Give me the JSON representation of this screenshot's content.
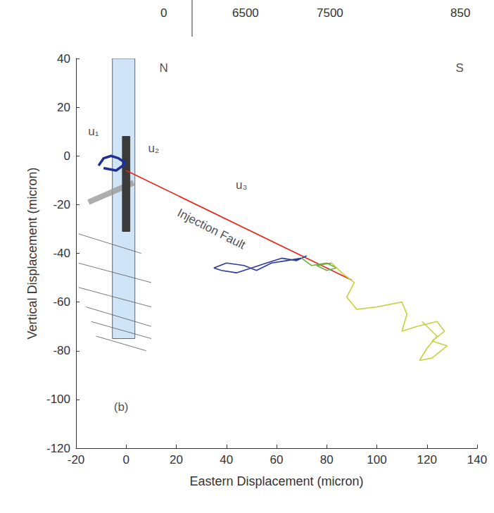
{
  "chart_data": {
    "type": "line",
    "x_label": "Eastern Displacement (micron)",
    "y_label": "Vertical Displacement (micron)",
    "xlim": [
      -20,
      140
    ],
    "ylim": [
      -120,
      40
    ],
    "xticks": [
      -20,
      0,
      20,
      40,
      60,
      80,
      100,
      120,
      140
    ],
    "yticks": [
      -120,
      -100,
      -80,
      -60,
      -40,
      -20,
      0,
      20,
      40
    ],
    "grid": false,
    "tick_labels": true,
    "series": [
      {
        "color": "#1f2f9a",
        "values": [
          [
            -11,
            -4
          ],
          [
            -9,
            -1
          ],
          [
            -6,
            0
          ],
          [
            -3,
            -1
          ],
          [
            0,
            -3
          ],
          [
            -4,
            -6
          ],
          [
            -9,
            -5
          ]
        ]
      },
      {
        "color": "#e8251b",
        "values": [
          [
            0,
            -6
          ],
          [
            90,
            -51
          ]
        ]
      },
      {
        "color": "#2c3a9e",
        "values": [
          [
            72,
            -41
          ],
          [
            68,
            -43
          ],
          [
            62,
            -42
          ],
          [
            56,
            -44
          ],
          [
            50,
            -46
          ],
          [
            44,
            -48
          ],
          [
            38,
            -47
          ],
          [
            35,
            -46
          ],
          [
            40,
            -44
          ],
          [
            47,
            -45
          ],
          [
            52,
            -47
          ],
          [
            58,
            -44
          ],
          [
            64,
            -43
          ],
          [
            70,
            -42
          ]
        ]
      },
      {
        "color": "#6aae3c",
        "values": [
          [
            70,
            -42
          ],
          [
            74,
            -45
          ],
          [
            80,
            -44
          ],
          [
            84,
            -46
          ],
          [
            80,
            -47
          ],
          [
            76,
            -45
          ],
          [
            82,
            -44
          ]
        ]
      },
      {
        "color": "#c4d23c",
        "values": [
          [
            82,
            -44
          ],
          [
            86,
            -48
          ],
          [
            91,
            -52
          ],
          [
            88,
            -58
          ],
          [
            92,
            -63
          ],
          [
            100,
            -62
          ],
          [
            110,
            -60
          ],
          [
            112,
            -65
          ],
          [
            110,
            -72
          ],
          [
            116,
            -70
          ],
          [
            124,
            -68
          ],
          [
            127,
            -72
          ],
          [
            122,
            -76
          ],
          [
            128,
            -78
          ],
          [
            122,
            -83
          ],
          [
            117,
            -84
          ],
          [
            120,
            -79
          ],
          [
            124,
            -74
          ],
          [
            118,
            -68
          ]
        ]
      }
    ],
    "annotations": [
      {
        "text": "N",
        "x": 15,
        "y": 36
      },
      {
        "text": "S",
        "x": 133,
        "y": 36
      },
      {
        "text": "u₁",
        "x": -13,
        "y": 10
      },
      {
        "text": "u₂",
        "x": 11,
        "y": 3
      },
      {
        "text": "u₃",
        "x": 46,
        "y": -12
      },
      {
        "text": "Injection Fault",
        "x": 34,
        "y": -30
      },
      {
        "text": "(b)",
        "x": -2,
        "y": -103
      }
    ],
    "schematic": {
      "borehole": [
        [
          -5.5,
          -75
        ],
        [
          3.5,
          40
        ]
      ],
      "sensor": [
        [
          -1.5,
          -31
        ],
        [
          1.5,
          8
        ]
      ],
      "fault": [
        [
          -15,
          -19
        ],
        [
          3,
          -11
        ]
      ],
      "fractures": [
        [
          [
            -19,
            -32
          ],
          [
            6,
            -40
          ]
        ],
        [
          [
            -19,
            -44
          ],
          [
            10,
            -52
          ]
        ],
        [
          [
            -19,
            -54
          ],
          [
            10,
            -62
          ]
        ],
        [
          [
            -16,
            -62
          ],
          [
            10,
            -70
          ]
        ],
        [
          [
            -14,
            -68
          ],
          [
            10,
            -75
          ]
        ],
        [
          [
            -12,
            -74
          ],
          [
            8,
            -80
          ]
        ]
      ]
    },
    "top_strip": [
      "0",
      "6500",
      "7500",
      "850"
    ]
  }
}
